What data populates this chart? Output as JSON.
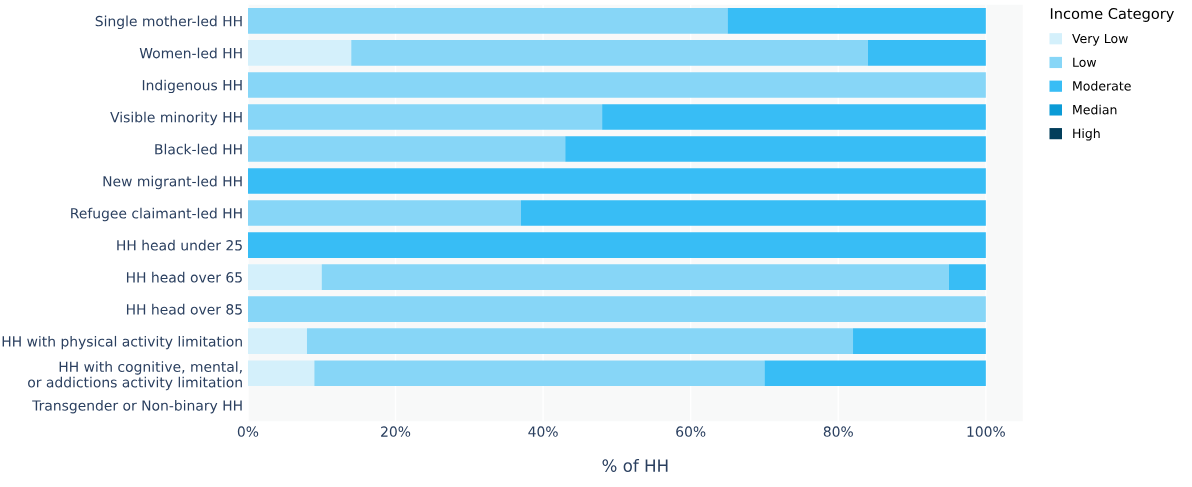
{
  "chart_data": {
    "type": "bar",
    "orientation": "horizontal",
    "stacked": true,
    "categories": [
      "Single mother-led HH",
      "Women-led HH",
      "Indigenous HH",
      "Visible minority HH",
      "Black-led HH",
      "New migrant-led HH",
      "Refugee claimant-led HH",
      "HH head under 25",
      "HH head over 65",
      "HH head over 85",
      "HH with physical activity limitation",
      "HH with cognitive, mental,\nor addictions activity limitation",
      "Transgender or Non-binary HH"
    ],
    "series": [
      {
        "name": "Very Low",
        "color": "#d4f0fb",
        "values": [
          0,
          14,
          0,
          0,
          0,
          0,
          0,
          0,
          10,
          0,
          8,
          9,
          null
        ]
      },
      {
        "name": "Low",
        "color": "#87d6f7",
        "values": [
          65,
          70,
          100,
          48,
          43,
          0,
          37,
          0,
          85,
          100,
          74,
          61,
          null
        ]
      },
      {
        "name": "Moderate",
        "color": "#38bdf5",
        "values": [
          35,
          16,
          0,
          52,
          57,
          100,
          63,
          100,
          5,
          0,
          18,
          30,
          null
        ]
      },
      {
        "name": "Median",
        "color": "#0b9bd6",
        "values": [
          0,
          0,
          0,
          0,
          0,
          0,
          0,
          0,
          0,
          0,
          0,
          0,
          null
        ]
      },
      {
        "name": "High",
        "color": "#023e5b",
        "values": [
          0,
          0,
          0,
          0,
          0,
          0,
          0,
          0,
          0,
          0,
          0,
          0,
          null
        ]
      }
    ],
    "xlabel": "% of HH",
    "legend_title": "Income Category",
    "legend": "top right",
    "xlim": [
      0,
      105
    ],
    "xticks": [
      {
        "value": 0,
        "label": "0%"
      },
      {
        "value": 20,
        "label": "20%"
      },
      {
        "value": 40,
        "label": "40%"
      },
      {
        "value": 60,
        "label": "60%"
      },
      {
        "value": 80,
        "label": "80%"
      },
      {
        "value": 100,
        "label": "100%"
      }
    ],
    "grid": "x"
  }
}
